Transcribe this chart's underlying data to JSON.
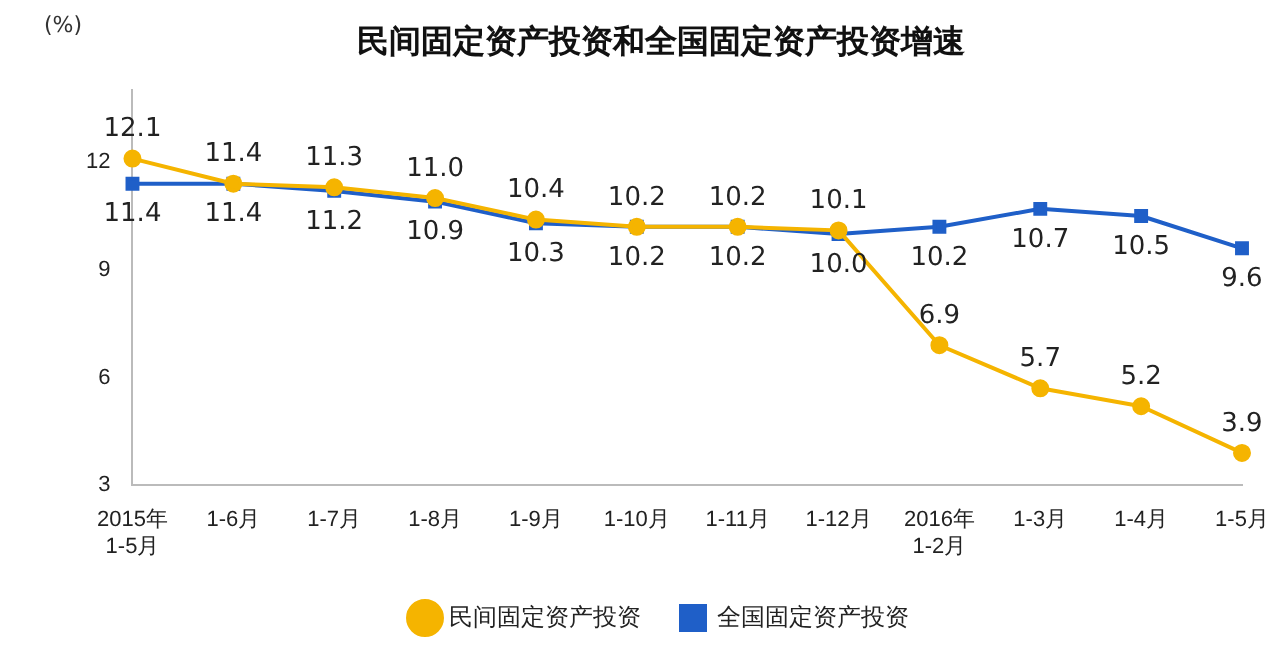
{
  "chart_data": {
    "type": "line",
    "title": "民间固定资产投资和全国固定资产投资增速",
    "ylabel": "(%)",
    "categories": [
      "2015年\n1-5月",
      "1-6月",
      "1-7月",
      "1-8月",
      "1-9月",
      "1-10月",
      "1-11月",
      "1-12月",
      "2016年\n1-2月",
      "1-3月",
      "1-4月",
      "1-5月"
    ],
    "series": [
      {
        "name": "民间固定资产投资",
        "color": "#f5b400",
        "marker": "circle",
        "values": [
          12.1,
          11.4,
          11.3,
          11.0,
          10.4,
          10.2,
          10.2,
          10.1,
          6.9,
          5.7,
          5.2,
          3.9
        ],
        "value_labels": [
          "12.1",
          "11.4",
          "11.3",
          "11.0",
          "10.4",
          "10.2",
          "10.2",
          "10.1",
          "6.9",
          "5.7",
          "5.2",
          "3.9"
        ]
      },
      {
        "name": "全国固定资产投资",
        "color": "#1f5fc8",
        "marker": "square",
        "values": [
          11.4,
          11.4,
          11.2,
          10.9,
          10.3,
          10.2,
          10.2,
          10.0,
          10.2,
          10.7,
          10.5,
          9.6
        ],
        "value_labels": [
          "11.4",
          "11.4",
          "11.2",
          "10.9",
          "10.3",
          "10.2",
          "10.2",
          "10.0",
          "10.2",
          "10.7",
          "10.5",
          "9.6"
        ]
      }
    ],
    "ylim": [
      3,
      14
    ],
    "yticks": [
      3,
      6,
      9,
      12
    ],
    "grid": false,
    "legend": "bottom",
    "line_style": "solid"
  }
}
